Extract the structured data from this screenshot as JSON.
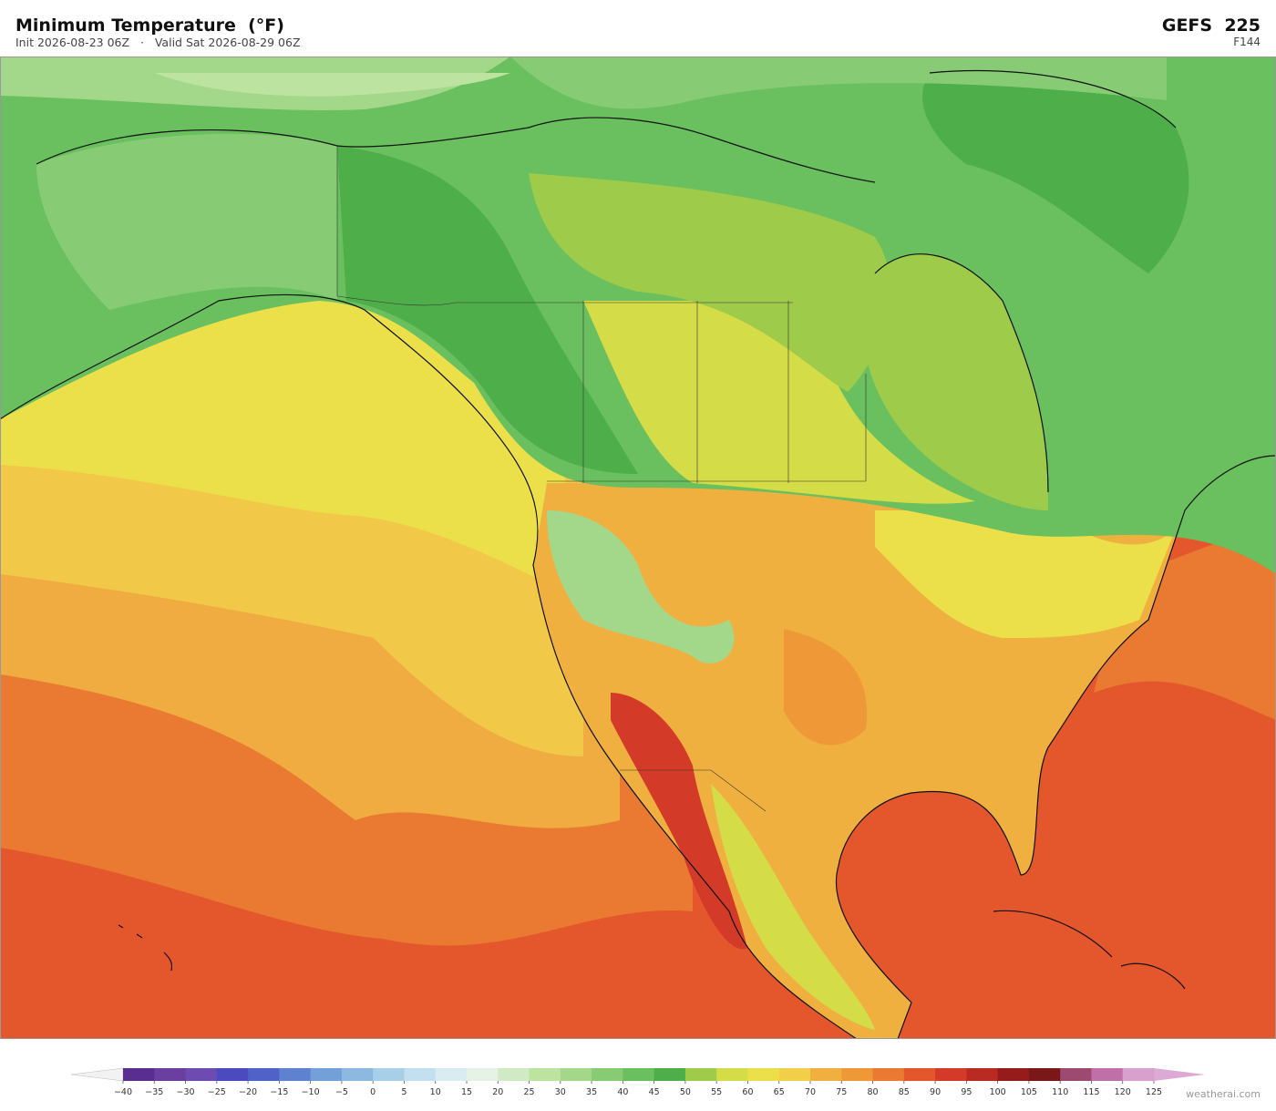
{
  "header": {
    "title": "Minimum Temperature  (°F)",
    "subtitle": "Init 2026-08-23 06Z   ·   Valid Sat 2026-08-29 06Z",
    "model": "GEFS  225",
    "forecast_hour": "F144"
  },
  "colorbar": {
    "ticks": [
      {
        "value": -40,
        "label": "−40"
      },
      {
        "value": -35,
        "label": "−35"
      },
      {
        "value": -30,
        "label": "−30"
      },
      {
        "value": -25,
        "label": "−25"
      },
      {
        "value": -20,
        "label": "−20"
      },
      {
        "value": -15,
        "label": "−15"
      },
      {
        "value": -10,
        "label": "−10"
      },
      {
        "value": -5,
        "label": "−5"
      },
      0,
      5,
      10,
      15,
      20,
      25,
      30,
      35,
      40,
      45,
      50,
      55,
      60,
      65,
      70,
      75,
      80,
      85,
      90,
      95,
      100,
      105,
      110,
      115,
      120,
      125
    ],
    "colors": [
      "#5a2d91",
      "#6a3fa0",
      "#6d4bb0",
      "#4b4bbf",
      "#4f62c8",
      "#5f82d0",
      "#74a0d8",
      "#8db8e0",
      "#a8cfe8",
      "#c2e0ef",
      "#d8ecf2",
      "#e4f3e6",
      "#d0ebc4",
      "#bde3a0",
      "#a3d88a",
      "#87cc74",
      "#6abf5e",
      "#4eae4a",
      "#9ecb4a",
      "#d4dc48",
      "#ece04a",
      "#f2cf48",
      "#f0b040",
      "#ee9838",
      "#ea7a32",
      "#e4572c",
      "#d43a28",
      "#b82a22",
      "#961c1c",
      "#7a1818",
      "#9c4a70",
      "#c070a8",
      "#d8a0cc"
    ],
    "under_color": "#f2f2f2",
    "over_color": "#dcaad4"
  },
  "footer": {
    "credit": "weatherai.com"
  }
}
